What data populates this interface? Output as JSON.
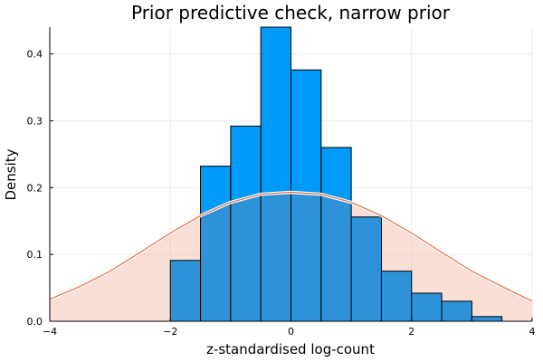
{
  "chart_data": {
    "type": "bar",
    "title": "Prior predictive check, narrow prior",
    "xlabel": "z-standardised log-count",
    "ylabel": "Density",
    "xlim": [
      -4,
      4
    ],
    "ylim": [
      0,
      0.44
    ],
    "xticks": [
      -4,
      -2,
      0,
      2,
      4
    ],
    "xtick_labels": [
      "−4",
      "−2",
      "0",
      "2",
      "4"
    ],
    "yticks": [
      0.0,
      0.1,
      0.2,
      0.3,
      0.4
    ],
    "ytick_labels": [
      "0.0",
      "0.1",
      "0.2",
      "0.3",
      "0.4"
    ],
    "grid": true,
    "legend": "none",
    "colors": {
      "bars": "#009af9",
      "bar_stroke": "#000000",
      "density_line": "#e26f46",
      "density_fill": "#e26f46",
      "overlap": "#2e92d9",
      "grid": "#e8e8e8"
    },
    "series": [
      {
        "type": "histogram",
        "bin_edges": [
          -2.0,
          -1.5,
          -1.0,
          -0.5,
          0.0,
          0.5,
          1.0,
          1.5,
          2.0,
          2.5,
          3.0,
          3.5
        ],
        "values": [
          0.091,
          0.232,
          0.292,
          0.44,
          0.376,
          0.26,
          0.156,
          0.075,
          0.042,
          0.03,
          0.007
        ]
      },
      {
        "type": "area",
        "x": [
          -4,
          -3.5,
          -3,
          -2.5,
          -2,
          -1.5,
          -1,
          -0.5,
          0,
          0.5,
          1,
          1.5,
          2,
          2.5,
          3,
          3.5,
          4
        ],
        "values": [
          0.033,
          0.052,
          0.075,
          0.103,
          0.132,
          0.158,
          0.178,
          0.19,
          0.193,
          0.19,
          0.178,
          0.158,
          0.132,
          0.103,
          0.075,
          0.052,
          0.03
        ]
      }
    ]
  }
}
